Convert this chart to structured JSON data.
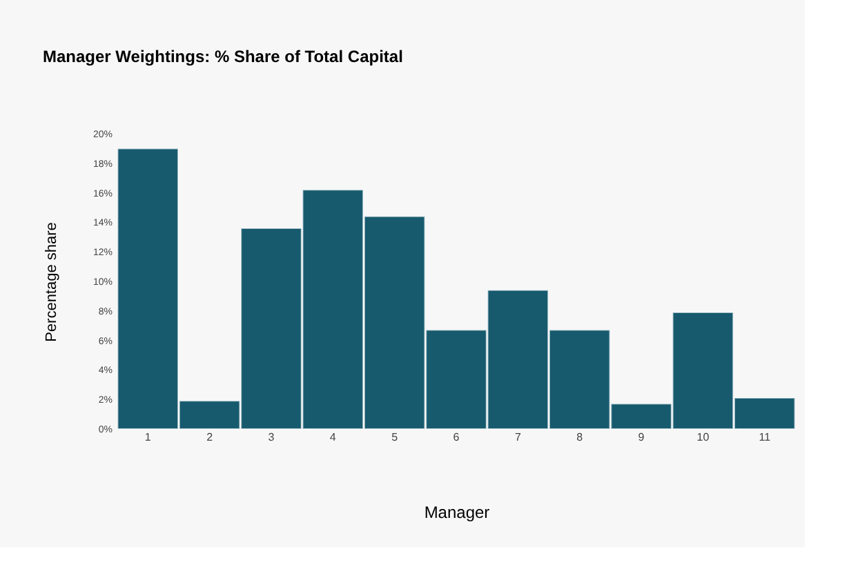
{
  "chart_data": {
    "type": "bar",
    "title": "Manager Weightings: % Share of Total Capital",
    "xlabel": "Manager",
    "ylabel": "Percentage share",
    "categories": [
      "1",
      "2",
      "3",
      "4",
      "5",
      "6",
      "7",
      "8",
      "9",
      "10",
      "11"
    ],
    "series": [
      {
        "color": "#175a6e",
        "values": [
          19.0,
          1.9,
          13.6,
          16.2,
          14.4,
          6.7,
          9.4,
          6.7,
          1.7,
          7.9,
          2.1
        ]
      }
    ],
    "ylim": [
      0,
      20
    ],
    "yticks": [
      {
        "value": 0,
        "label": "0%"
      },
      {
        "value": 2,
        "label": "2%"
      },
      {
        "value": 4,
        "label": "4%"
      },
      {
        "value": 6,
        "label": "6%"
      },
      {
        "value": 8,
        "label": "8%"
      },
      {
        "value": 10,
        "label": "10%"
      },
      {
        "value": 12,
        "label": "12%"
      },
      {
        "value": 14,
        "label": "14%"
      },
      {
        "value": 16,
        "label": "16%"
      },
      {
        "value": 18,
        "label": "18%"
      },
      {
        "value": 20,
        "label": "20%"
      }
    ],
    "grid": false
  }
}
